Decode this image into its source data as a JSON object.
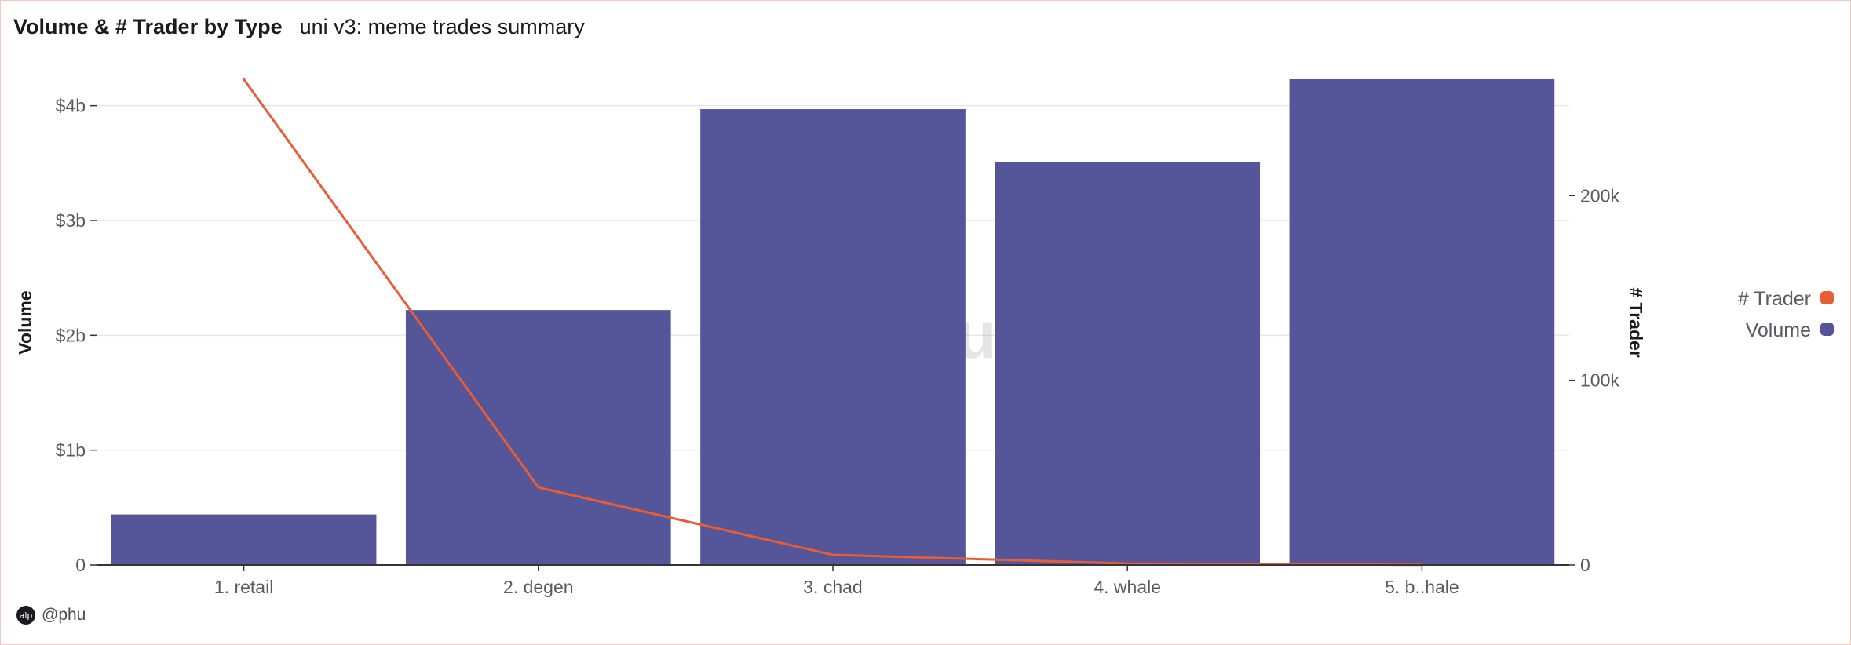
{
  "header": {
    "title": "Volume & # Trader by Type",
    "subtitle": "uni v3: meme trades summary"
  },
  "author": {
    "handle": "@phu",
    "avatar_text": "alp"
  },
  "watermark": {
    "text": "Dune"
  },
  "colors": {
    "volume": "#55559a",
    "trader": "#e85d36",
    "grid": "#e8e8ec",
    "axis": "#333338"
  },
  "chart_data": {
    "type": "bar",
    "title": "Volume & # Trader by Type",
    "categories": [
      "1. retail",
      "2. degen",
      "3. chad",
      "4. whale",
      "5. b..hale"
    ],
    "series": [
      {
        "name": "Volume",
        "type": "bar",
        "axis": "left",
        "values": [
          440000000,
          2220000000,
          3970000000,
          3510000000,
          4230000000
        ]
      },
      {
        "name": "# Trader",
        "type": "line",
        "axis": "right",
        "values": [
          263000,
          42000,
          5500,
          800,
          100
        ]
      }
    ],
    "ylabel": "Volume",
    "ylabel_right": "# Trader",
    "ylim": [
      0,
      4230000000
    ],
    "ylim_right": [
      0,
      263000
    ],
    "yticks": [
      {
        "value": 0,
        "label": "0"
      },
      {
        "value": 1000000000,
        "label": "$1b"
      },
      {
        "value": 2000000000,
        "label": "$2b"
      },
      {
        "value": 3000000000,
        "label": "$3b"
      },
      {
        "value": 4000000000,
        "label": "$4b"
      }
    ],
    "yticks_right": [
      {
        "value": 0,
        "label": "0"
      },
      {
        "value": 100000,
        "label": "100k"
      },
      {
        "value": 200000,
        "label": "200k"
      }
    ],
    "grid": true,
    "legend": {
      "placement": "right",
      "items": [
        {
          "label": "# Trader",
          "color": "#e85d36"
        },
        {
          "label": "Volume",
          "color": "#55559a"
        }
      ]
    }
  }
}
